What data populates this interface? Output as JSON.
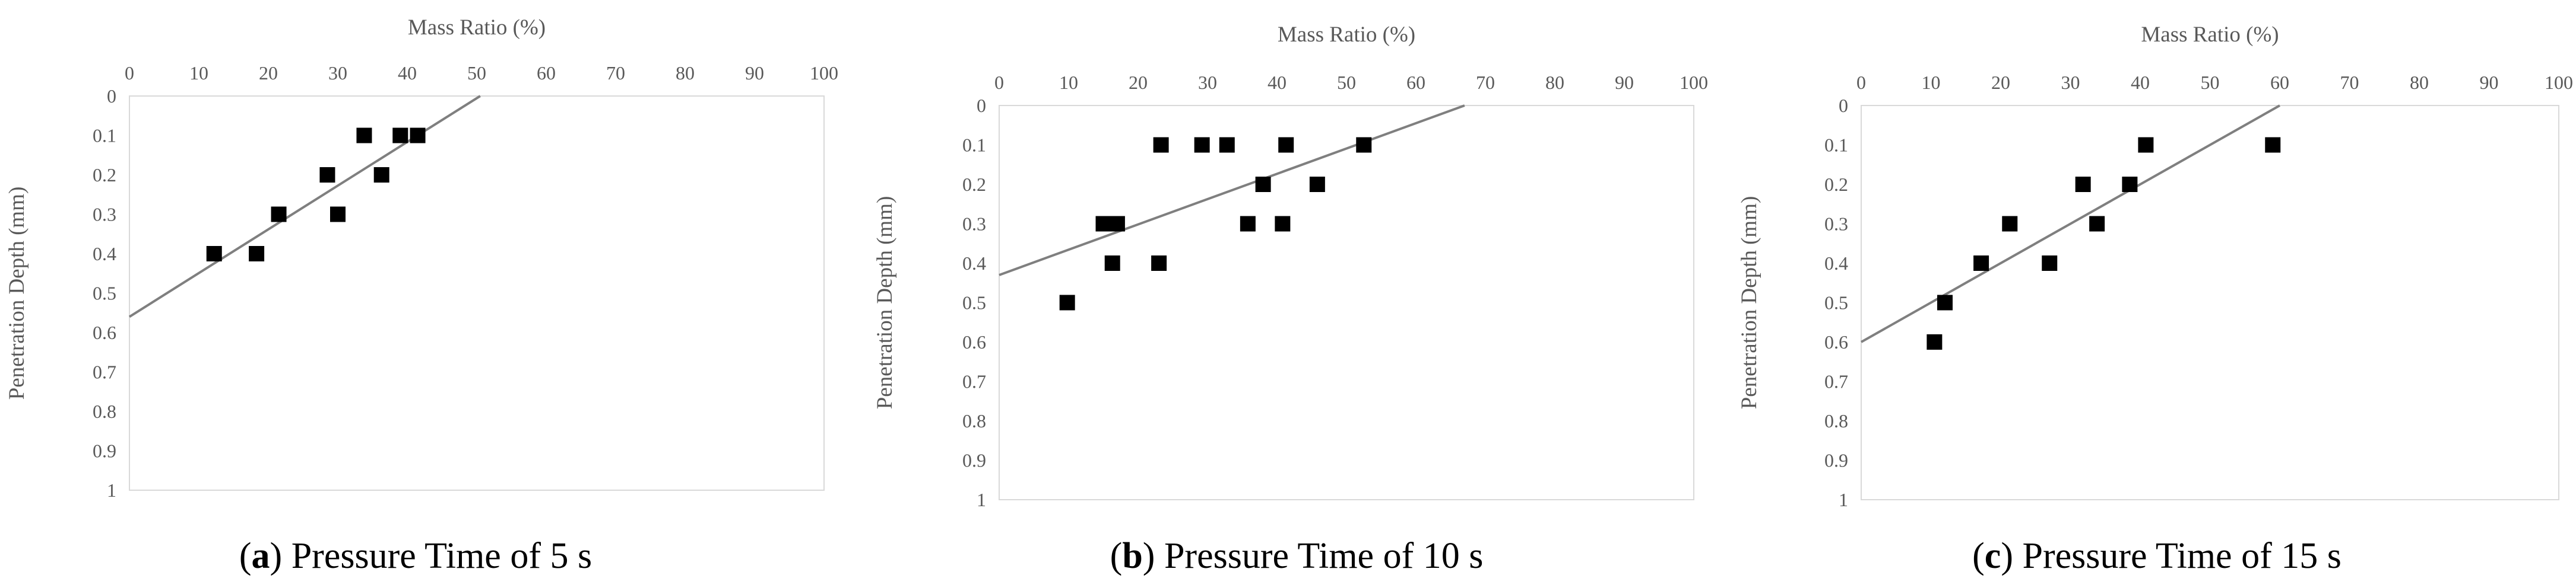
{
  "chart_data": [
    {
      "type": "scatter",
      "panel_letter": "a",
      "caption": "Pressure Time of 5 s",
      "xlabel": "Mass Ratio (%)",
      "ylabel": "Penetration Depth (mm)",
      "xlim": [
        0,
        100
      ],
      "ylim": [
        0,
        1
      ],
      "x_ticks": [
        "0",
        "10",
        "20",
        "30",
        "40",
        "50",
        "60",
        "70",
        "80",
        "90",
        "100"
      ],
      "y_ticks": [
        "0",
        "0.1",
        "0.2",
        "0.3",
        "0.4",
        "0.5",
        "0.6",
        "0.7",
        "0.8",
        "0.9",
        "1"
      ],
      "x_axis_position": "top",
      "y_axis_inverted": true,
      "marker_color": "#000000",
      "trendline_color": "#7f7f7f",
      "points": [
        {
          "x": 12.2,
          "y": 0.4
        },
        {
          "x": 18.3,
          "y": 0.4
        },
        {
          "x": 21.5,
          "y": 0.3
        },
        {
          "x": 28.5,
          "y": 0.2
        },
        {
          "x": 30.0,
          "y": 0.3
        },
        {
          "x": 33.8,
          "y": 0.1
        },
        {
          "x": 36.3,
          "y": 0.2
        },
        {
          "x": 39.0,
          "y": 0.1
        },
        {
          "x": 41.5,
          "y": 0.1
        }
      ],
      "trendline": {
        "x1": 0,
        "y1": 0.56,
        "x2": 50.5,
        "y2": 0.0
      }
    },
    {
      "type": "scatter",
      "panel_letter": "b",
      "caption": "Pressure Time of 10 s",
      "xlabel": "Mass Ratio (%)",
      "ylabel": "Penetration Depth (mm)",
      "xlim": [
        0,
        100
      ],
      "ylim": [
        0,
        1
      ],
      "x_ticks": [
        "0",
        "10",
        "20",
        "30",
        "40",
        "50",
        "60",
        "70",
        "80",
        "90",
        "100"
      ],
      "y_ticks": [
        "0",
        "0.1",
        "0.2",
        "0.3",
        "0.4",
        "0.5",
        "0.6",
        "0.7",
        "0.8",
        "0.9",
        "1"
      ],
      "x_axis_position": "top",
      "y_axis_inverted": true,
      "marker_color": "#000000",
      "trendline_color": "#7f7f7f",
      "points": [
        {
          "x": 9.8,
          "y": 0.5
        },
        {
          "x": 15.0,
          "y": 0.3
        },
        {
          "x": 16.3,
          "y": 0.4
        },
        {
          "x": 17.0,
          "y": 0.3
        },
        {
          "x": 23.0,
          "y": 0.4
        },
        {
          "x": 23.3,
          "y": 0.1
        },
        {
          "x": 29.2,
          "y": 0.1
        },
        {
          "x": 32.8,
          "y": 0.1
        },
        {
          "x": 35.8,
          "y": 0.3
        },
        {
          "x": 38.0,
          "y": 0.2
        },
        {
          "x": 40.8,
          "y": 0.3
        },
        {
          "x": 41.3,
          "y": 0.1
        },
        {
          "x": 45.8,
          "y": 0.2
        },
        {
          "x": 52.5,
          "y": 0.1
        }
      ],
      "trendline": {
        "x1": 0,
        "y1": 0.43,
        "x2": 67.0,
        "y2": 0.0
      }
    },
    {
      "type": "scatter",
      "panel_letter": "c",
      "caption": "Pressure Time of 15 s",
      "xlabel": "Mass Ratio (%)",
      "ylabel": "Penetration Depth (mm)",
      "xlim": [
        0,
        100
      ],
      "ylim": [
        0,
        1
      ],
      "x_ticks": [
        "0",
        "10",
        "20",
        "30",
        "40",
        "50",
        "60",
        "70",
        "80",
        "90",
        "100"
      ],
      "y_ticks": [
        "0",
        "0.1",
        "0.2",
        "0.3",
        "0.4",
        "0.5",
        "0.6",
        "0.7",
        "0.8",
        "0.9",
        "1"
      ],
      "x_axis_position": "top",
      "y_axis_inverted": true,
      "marker_color": "#000000",
      "trendline_color": "#7f7f7f",
      "points": [
        {
          "x": 10.5,
          "y": 0.6
        },
        {
          "x": 12.0,
          "y": 0.5
        },
        {
          "x": 17.2,
          "y": 0.4
        },
        {
          "x": 21.3,
          "y": 0.3
        },
        {
          "x": 27.0,
          "y": 0.4
        },
        {
          "x": 31.8,
          "y": 0.2
        },
        {
          "x": 33.8,
          "y": 0.3
        },
        {
          "x": 38.5,
          "y": 0.2
        },
        {
          "x": 40.8,
          "y": 0.1
        },
        {
          "x": 59.0,
          "y": 0.1
        }
      ],
      "trendline": {
        "x1": 0,
        "y1": 0.6,
        "x2": 60.0,
        "y2": 0.0
      }
    }
  ]
}
